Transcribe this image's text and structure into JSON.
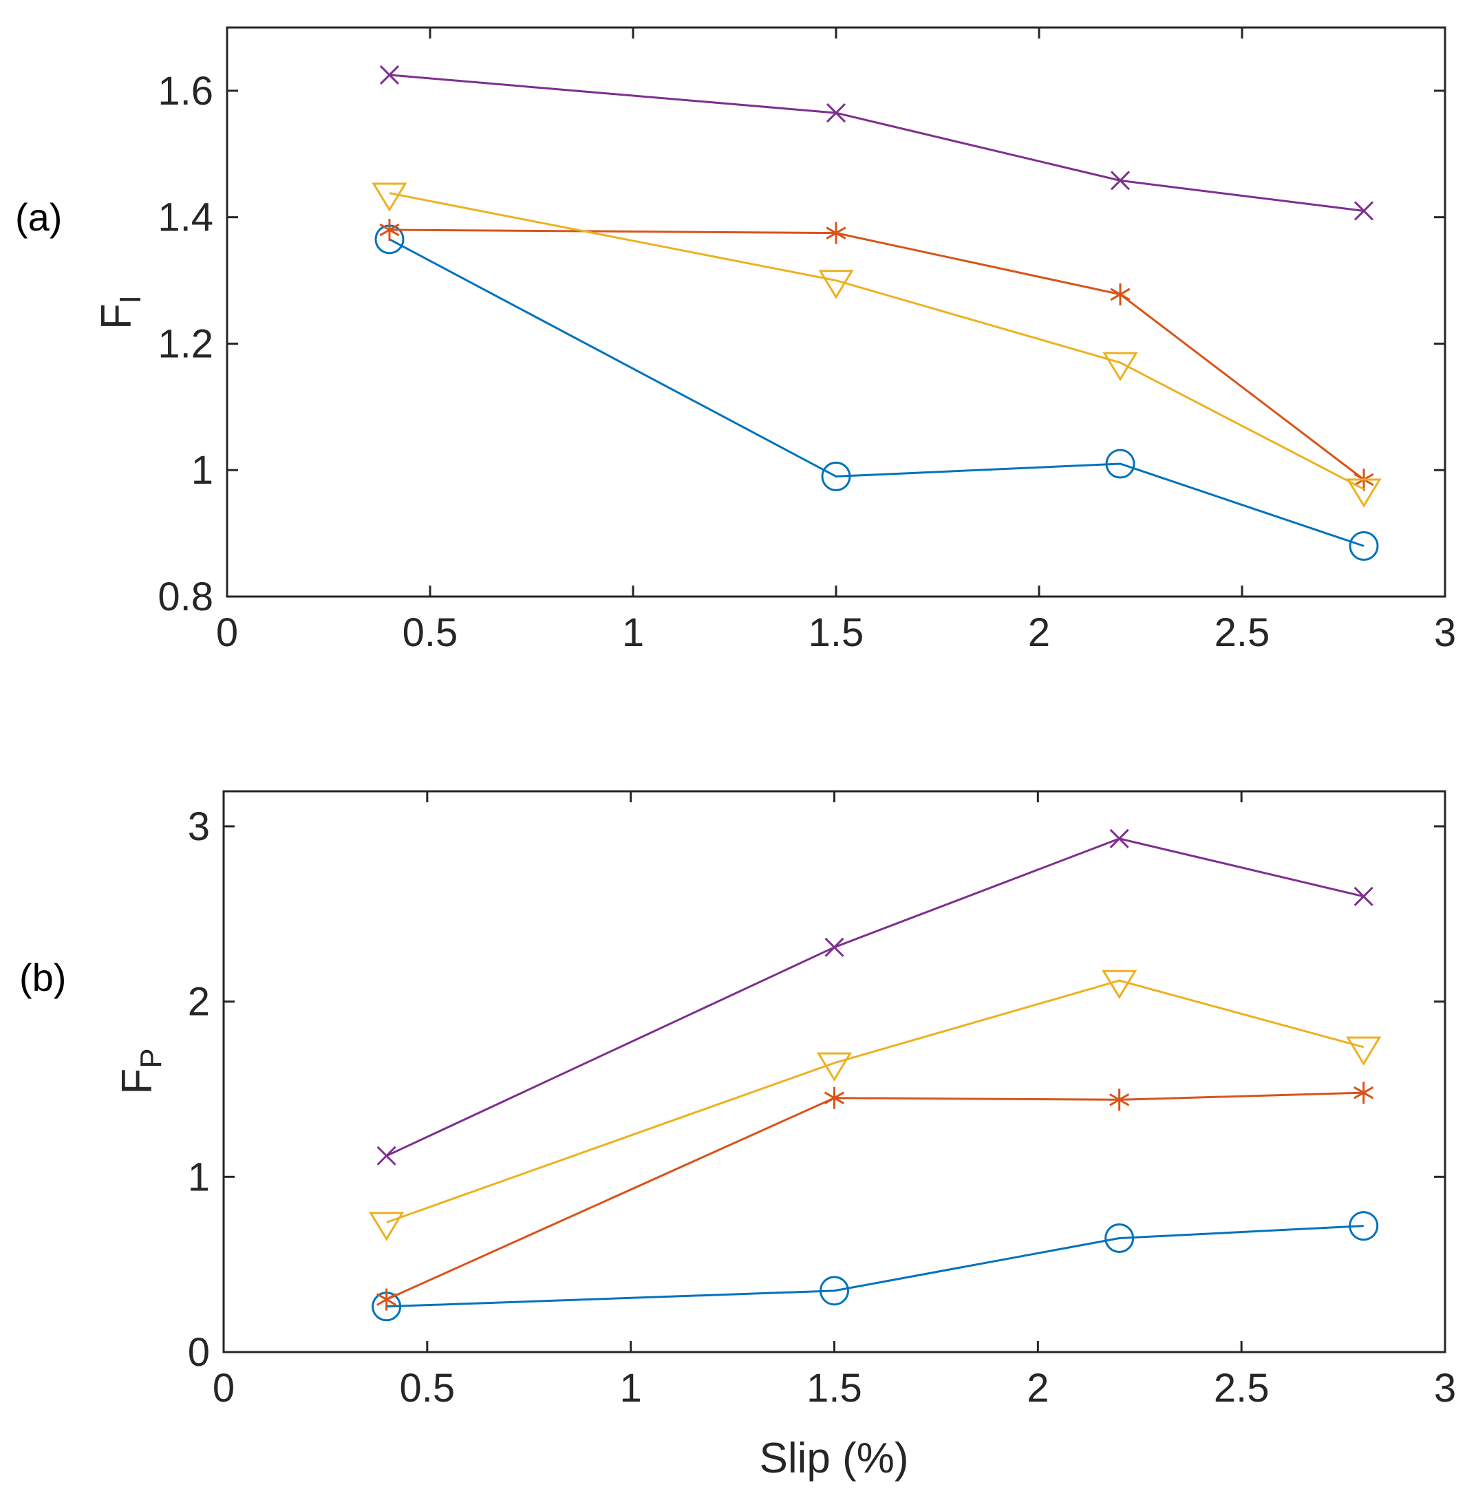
{
  "chart_data": [
    {
      "type": "line",
      "panel_label": "(a)",
      "ylabel": "F",
      "ylabel_subscript": "I",
      "xlabel": "",
      "xlim": [
        0,
        3
      ],
      "ylim": [
        0.8,
        1.7
      ],
      "xticks": [
        0,
        0.5,
        1,
        1.5,
        2,
        2.5,
        3
      ],
      "xtick_labels": [
        "0",
        "0.5",
        "1",
        "1.5",
        "2",
        "2.5",
        "3"
      ],
      "yticks": [
        0.8,
        1,
        1.2,
        1.4,
        1.6
      ],
      "ytick_labels": [
        "0.8",
        "1",
        "1.2",
        "1.4",
        "1.6"
      ],
      "grid": false,
      "series": [
        {
          "name": "circle series",
          "color": "#0072BD",
          "marker": "circle",
          "x": [
            0.4,
            1.5,
            2.2,
            2.8
          ],
          "values": [
            1.365,
            0.99,
            1.01,
            0.88
          ]
        },
        {
          "name": "asterisk series",
          "color": "#D95319",
          "marker": "asterisk",
          "x": [
            0.4,
            1.5,
            2.2,
            2.8
          ],
          "values": [
            1.38,
            1.375,
            1.278,
            0.985
          ]
        },
        {
          "name": "triangle series",
          "color": "#EDB120",
          "marker": "triangle-down",
          "x": [
            0.4,
            1.5,
            2.2,
            2.8
          ],
          "values": [
            1.438,
            1.3,
            1.17,
            0.97
          ]
        },
        {
          "name": "cross series",
          "color": "#7E2F8E",
          "marker": "x",
          "x": [
            0.4,
            1.5,
            2.2,
            2.8
          ],
          "values": [
            1.625,
            1.565,
            1.458,
            1.41
          ]
        }
      ]
    },
    {
      "type": "line",
      "panel_label": "(b)",
      "ylabel": "F",
      "ylabel_subscript": "P",
      "xlabel": "Slip (%)",
      "xlim": [
        0,
        3
      ],
      "ylim": [
        0,
        3.2
      ],
      "xticks": [
        0,
        0.5,
        1,
        1.5,
        2,
        2.5,
        3
      ],
      "xtick_labels": [
        "0",
        "0.5",
        "1",
        "1.5",
        "2",
        "2.5",
        "3"
      ],
      "yticks": [
        0,
        1,
        2,
        3
      ],
      "ytick_labels": [
        "0",
        "1",
        "2",
        "3"
      ],
      "grid": false,
      "series": [
        {
          "name": "circle series",
          "color": "#0072BD",
          "marker": "circle",
          "x": [
            0.4,
            1.5,
            2.2,
            2.8
          ],
          "values": [
            0.26,
            0.35,
            0.65,
            0.72
          ]
        },
        {
          "name": "asterisk series",
          "color": "#D95319",
          "marker": "asterisk",
          "x": [
            0.4,
            1.5,
            2.2,
            2.8
          ],
          "values": [
            0.3,
            1.45,
            1.44,
            1.48
          ]
        },
        {
          "name": "triangle series",
          "color": "#EDB120",
          "marker": "triangle-down",
          "x": [
            0.4,
            1.5,
            2.2,
            2.8
          ],
          "values": [
            0.74,
            1.65,
            2.12,
            1.74
          ]
        },
        {
          "name": "cross series",
          "color": "#7E2F8E",
          "marker": "x",
          "x": [
            0.4,
            1.5,
            2.2,
            2.8
          ],
          "values": [
            1.12,
            2.31,
            2.93,
            2.6
          ]
        }
      ]
    }
  ]
}
